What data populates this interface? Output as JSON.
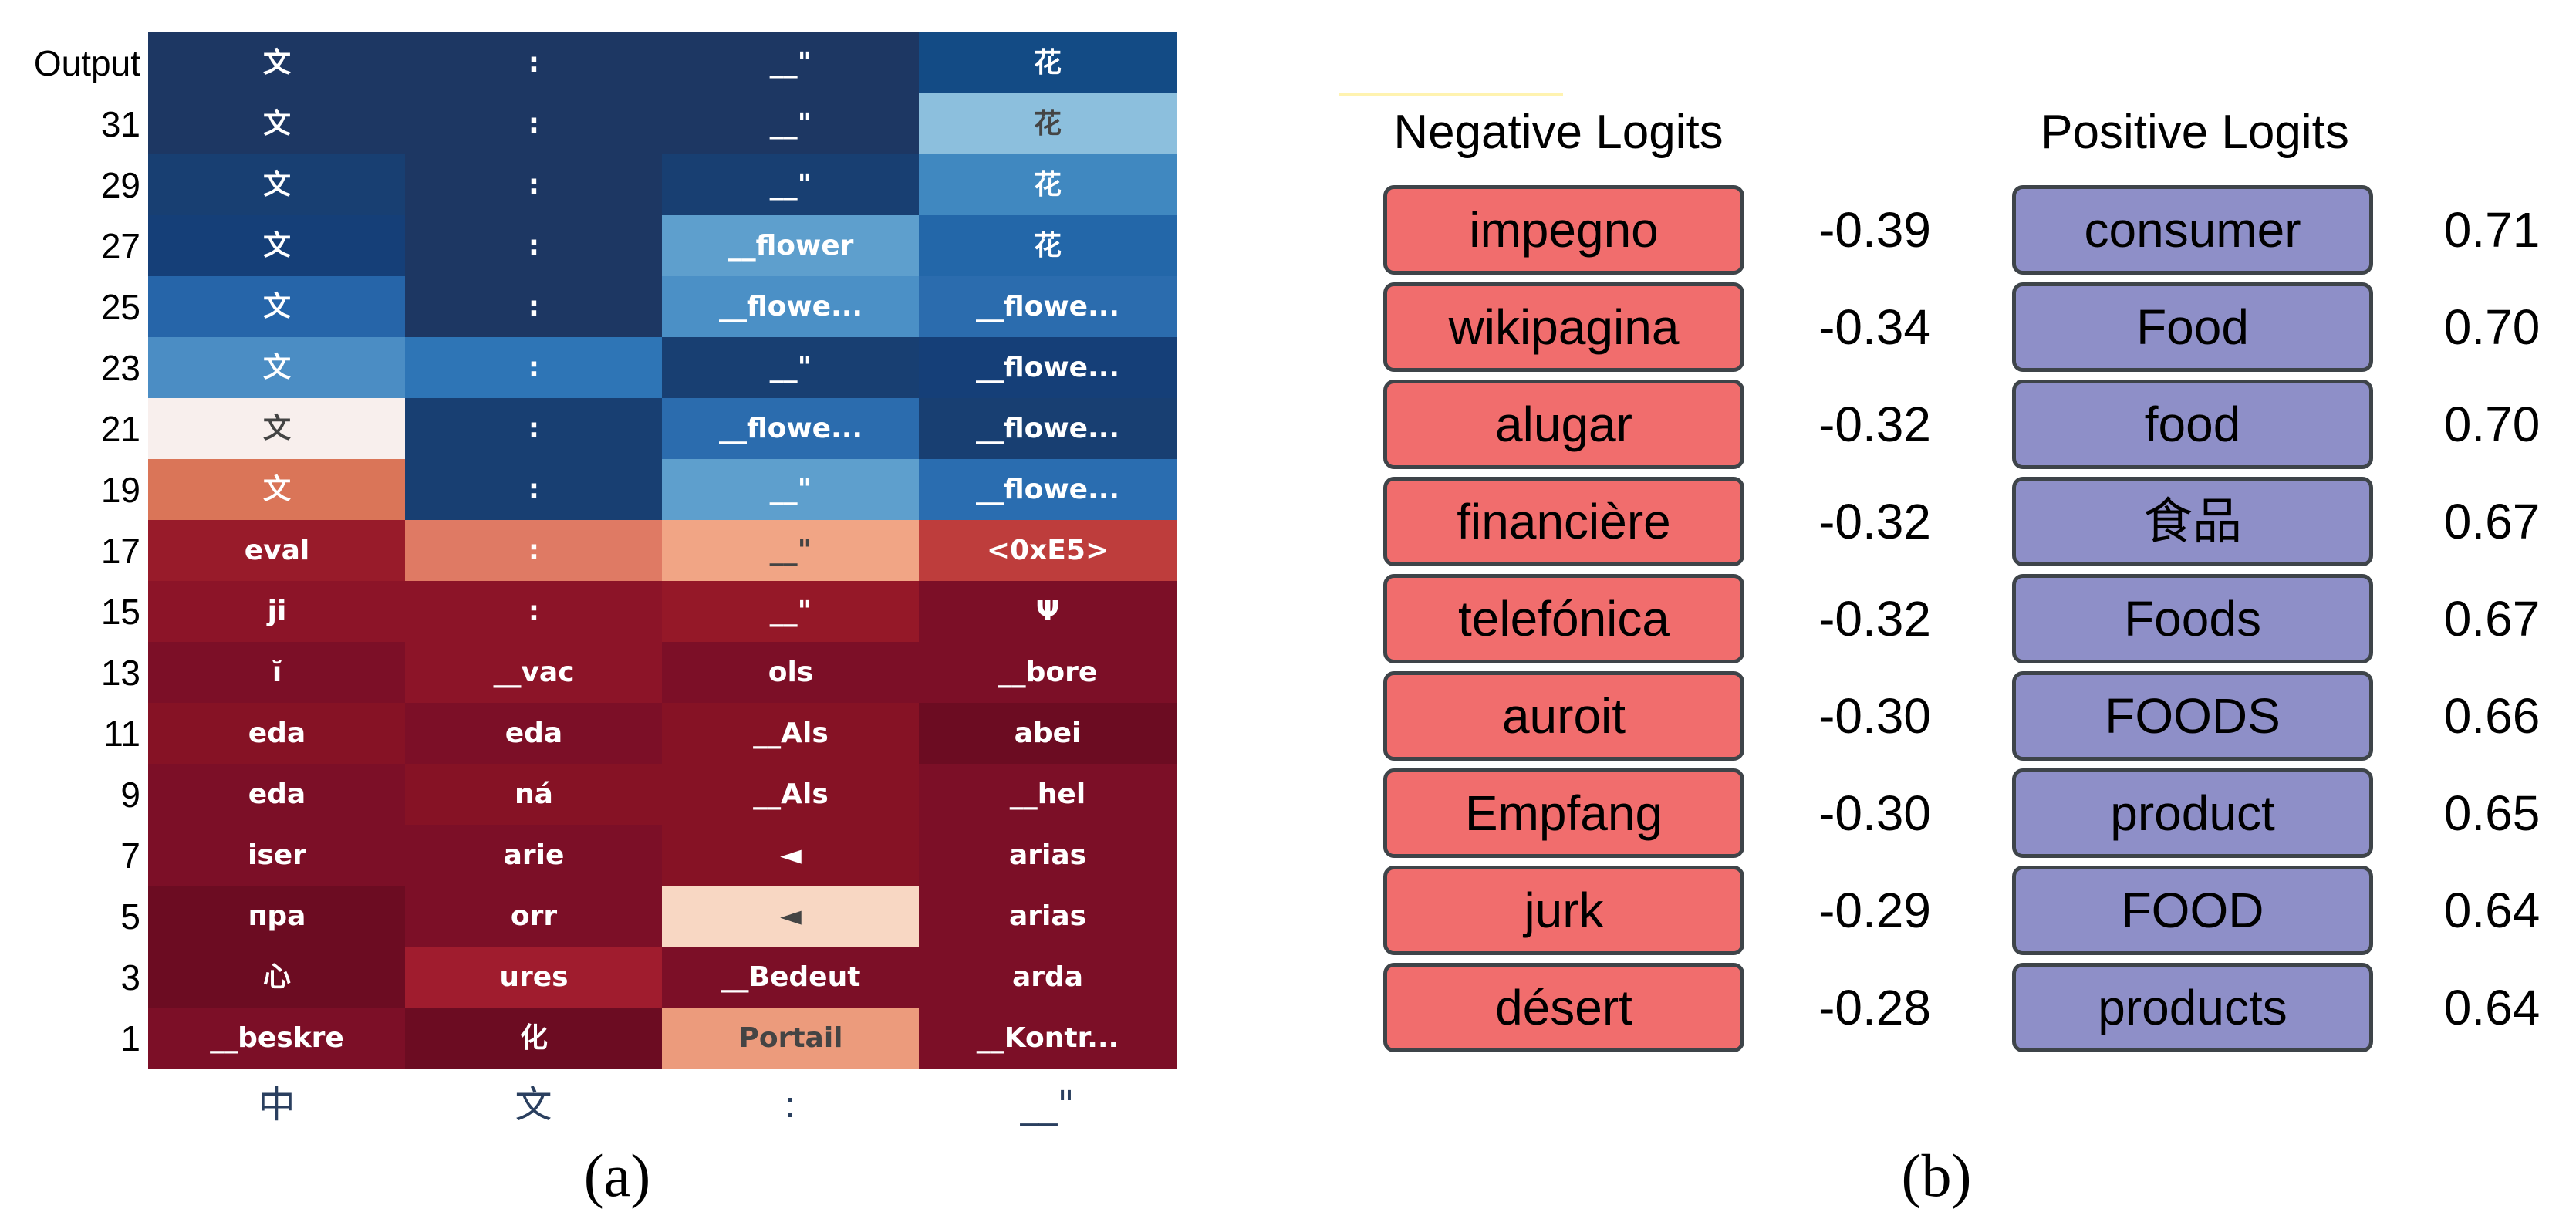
{
  "panel_a": {
    "caption": "(a)",
    "column_labels": [
      "中",
      "文",
      ":",
      "__\""
    ],
    "row_labels": [
      "Output",
      "31",
      "29",
      "27",
      "25",
      "23",
      "21",
      "19",
      "17",
      "15",
      "13",
      "11",
      "9",
      "7",
      "5",
      "3",
      "1"
    ],
    "cells": [
      [
        {
          "t": "文",
          "c": "#1d3763"
        },
        {
          "t": ":",
          "c": "#1d3763"
        },
        {
          "t": "__\"",
          "c": "#1d3763"
        },
        {
          "t": "花",
          "c": "#134b85"
        }
      ],
      [
        {
          "t": "文",
          "c": "#1d3763"
        },
        {
          "t": ":",
          "c": "#1d3763"
        },
        {
          "t": "__\"",
          "c": "#1d3763"
        },
        {
          "t": "花",
          "c": "#8cbfdd"
        }
      ],
      [
        {
          "t": "文",
          "c": "#183f72"
        },
        {
          "t": ":",
          "c": "#1d3763"
        },
        {
          "t": "__\"",
          "c": "#183f72"
        },
        {
          "t": "花",
          "c": "#4088c0"
        }
      ],
      [
        {
          "t": "文",
          "c": "#153f78"
        },
        {
          "t": ":",
          "c": "#1d3763"
        },
        {
          "t": "__flower",
          "c": "#5e9fcd"
        },
        {
          "t": "花",
          "c": "#2367a9"
        }
      ],
      [
        {
          "t": "文",
          "c": "#2665a9"
        },
        {
          "t": ":",
          "c": "#1d3763"
        },
        {
          "t": "__flowe...",
          "c": "#4b90c6"
        },
        {
          "t": "__flowe...",
          "c": "#2b6cae"
        }
      ],
      [
        {
          "t": "文",
          "c": "#4b8dc4"
        },
        {
          "t": ":",
          "c": "#2e75b6"
        },
        {
          "t": "__\"",
          "c": "#183f72"
        },
        {
          "t": "__flowe...",
          "c": "#153f78"
        }
      ],
      [
        {
          "t": "文",
          "c": "#f8efed"
        },
        {
          "t": ":",
          "c": "#183f72"
        },
        {
          "t": "__flowe...",
          "c": "#2b6cae"
        },
        {
          "t": "__flowe...",
          "c": "#183f72"
        }
      ],
      [
        {
          "t": "文",
          "c": "#da7558"
        },
        {
          "t": ":",
          "c": "#183f72"
        },
        {
          "t": "__\"",
          "c": "#5e9fcd"
        },
        {
          "t": "__flowe...",
          "c": "#2a6db0"
        }
      ],
      [
        {
          "t": "eval",
          "c": "#981b2a"
        },
        {
          "t": ":",
          "c": "#df7a64"
        },
        {
          "t": "__\"",
          "c": "#f1a585"
        },
        {
          "t": "<0xE5>",
          "c": "#be3d3c"
        }
      ],
      [
        {
          "t": "ji",
          "c": "#8c1428"
        },
        {
          "t": ":",
          "c": "#8c1428"
        },
        {
          "t": "__\"",
          "c": "#951828"
        },
        {
          "t": "Ψ",
          "c": "#7c0f27"
        }
      ],
      [
        {
          "t": "ĭ",
          "c": "#7c0f27"
        },
        {
          "t": "__vac",
          "c": "#8c1428"
        },
        {
          "t": "ols",
          "c": "#7c0f27"
        },
        {
          "t": "__bore",
          "c": "#7c0f27"
        }
      ],
      [
        {
          "t": "eda",
          "c": "#861225"
        },
        {
          "t": "eda",
          "c": "#7c0f27"
        },
        {
          "t": "__Als",
          "c": "#861225"
        },
        {
          "t": "abei",
          "c": "#6c0c22"
        }
      ],
      [
        {
          "t": "eda",
          "c": "#7c0f27"
        },
        {
          "t": "ná",
          "c": "#861225"
        },
        {
          "t": "__Als",
          "c": "#861225"
        },
        {
          "t": "__hel",
          "c": "#7c0f27"
        }
      ],
      [
        {
          "t": "iser",
          "c": "#7c0f27"
        },
        {
          "t": "arie",
          "c": "#7c0f27"
        },
        {
          "t": "◄",
          "c": "#861225"
        },
        {
          "t": "arias",
          "c": "#7c0f27"
        }
      ],
      [
        {
          "t": "пpa",
          "c": "#6c0c22"
        },
        {
          "t": "orr",
          "c": "#7c0f27"
        },
        {
          "t": "◄",
          "c": "#f8d7c3"
        },
        {
          "t": "arias",
          "c": "#7c0f27"
        }
      ],
      [
        {
          "t": "心",
          "c": "#6c0c22"
        },
        {
          "t": "ures",
          "c": "#a01c2e"
        },
        {
          "t": "__Bedeut",
          "c": "#7c0f27"
        },
        {
          "t": "arda",
          "c": "#7c0f27"
        }
      ],
      [
        {
          "t": "__beskre",
          "c": "#7c0f27"
        },
        {
          "t": "化",
          "c": "#6c0c22"
        },
        {
          "t": "Portail",
          "c": "#ec9b7c"
        },
        {
          "t": "__Kontr...",
          "c": "#7c0f27"
        }
      ]
    ]
  },
  "panel_b": {
    "caption": "(b)",
    "negative": {
      "title": "Negative Logits",
      "color": "#f16d6d",
      "tokens": [
        "impegno",
        "wikipagina",
        "alugar",
        "financière",
        "telefónica",
        "auroit",
        "Empfang",
        "jurk",
        "désert"
      ],
      "values": [
        "-0.39",
        "-0.34",
        "-0.32",
        "-0.32",
        "-0.32",
        "-0.30",
        "-0.30",
        "-0.29",
        "-0.28"
      ]
    },
    "positive": {
      "title": "Positive Logits",
      "color": "#8e8fc8",
      "tokens": [
        "consumer",
        "Food",
        "food",
        "食品",
        "Foods",
        "FOODS",
        "product",
        "FOOD",
        "products"
      ],
      "values": [
        "0.71",
        "0.70",
        "0.70",
        "0.67",
        "0.67",
        "0.66",
        "0.65",
        "0.64",
        "0.64"
      ]
    }
  }
}
